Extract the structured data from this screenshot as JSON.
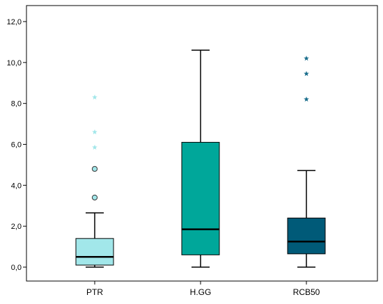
{
  "chart_data": {
    "type": "boxplot",
    "title": "",
    "xlabel": "",
    "ylabel": "",
    "ylim": [
      -0.8,
      12.6
    ],
    "yticks": [
      0,
      2,
      4,
      6,
      8,
      10,
      12
    ],
    "ytick_labels": [
      "0,0",
      "2,0",
      "4,0",
      "6,0",
      "8,0",
      "10,0",
      "12,0"
    ],
    "grid": false,
    "legend": "none",
    "categories": [
      "PTR",
      "H.GG",
      "RCB50"
    ],
    "series": [
      {
        "category": "PTR",
        "color": "#a2e7ea",
        "min": 0.0,
        "q1": 0.1,
        "median": 0.5,
        "q3": 1.4,
        "max": 2.65,
        "outliers_circle": [
          3.4,
          4.8
        ],
        "outliers_star": [
          5.85,
          6.6,
          8.3
        ],
        "star_color": "#a2e7ea"
      },
      {
        "category": "H.GG",
        "color": "#00a79a",
        "min": 0.0,
        "q1": 0.6,
        "median": 1.85,
        "q3": 6.1,
        "max": 10.6,
        "outliers_circle": [],
        "outliers_star": [],
        "star_color": "#00a79a"
      },
      {
        "category": "RCB50",
        "color": "#005a78",
        "min": 0.0,
        "q1": 0.65,
        "median": 1.25,
        "q3": 2.4,
        "max": 4.72,
        "outliers_circle": [],
        "outliers_star": [
          8.2,
          9.45,
          10.2
        ],
        "star_color": "#1a6e8c"
      }
    ]
  }
}
